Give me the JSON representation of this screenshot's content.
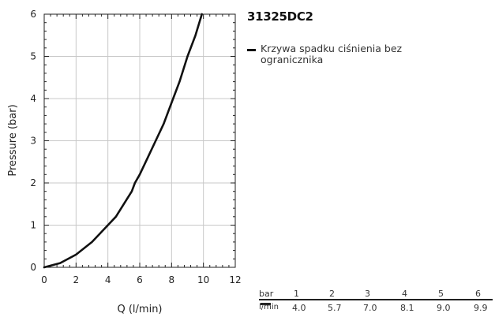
{
  "product": {
    "title": "31325DC2"
  },
  "chart_data": {
    "type": "line",
    "xlabel": "Q (l/min)",
    "ylabel": "Pressure (bar)",
    "xlim": [
      0,
      12
    ],
    "ylim": [
      0,
      6
    ],
    "xticks": [
      "0",
      "2",
      "4",
      "6",
      "8",
      "10",
      "12"
    ],
    "yticks": [
      "0",
      "1",
      "2",
      "3",
      "4",
      "5",
      "6"
    ],
    "grid": true,
    "legend_placement": "right",
    "series": [
      {
        "name": "Krzywa spadku ciśnienia bez ogranicznika",
        "color": "#111111",
        "x": [
          0,
          1,
          2,
          3,
          4,
          4.5,
          5,
          5.5,
          5.7,
          6,
          6.5,
          7,
          7.5,
          8,
          8.1,
          8.5,
          9,
          9.5,
          9.9
        ],
        "y": [
          0,
          0.1,
          0.3,
          0.6,
          1.0,
          1.2,
          1.5,
          1.8,
          2.0,
          2.2,
          2.6,
          3.0,
          3.4,
          3.9,
          4.0,
          4.4,
          5.0,
          5.5,
          6.0
        ]
      }
    ]
  },
  "table": {
    "row_label": "bar",
    "unit_label": "l/min",
    "bar": [
      "1",
      "2",
      "3",
      "4",
      "5",
      "6"
    ],
    "flow": [
      "4.0",
      "5.7",
      "7.0",
      "8.1",
      "9.0",
      "9.9"
    ]
  }
}
